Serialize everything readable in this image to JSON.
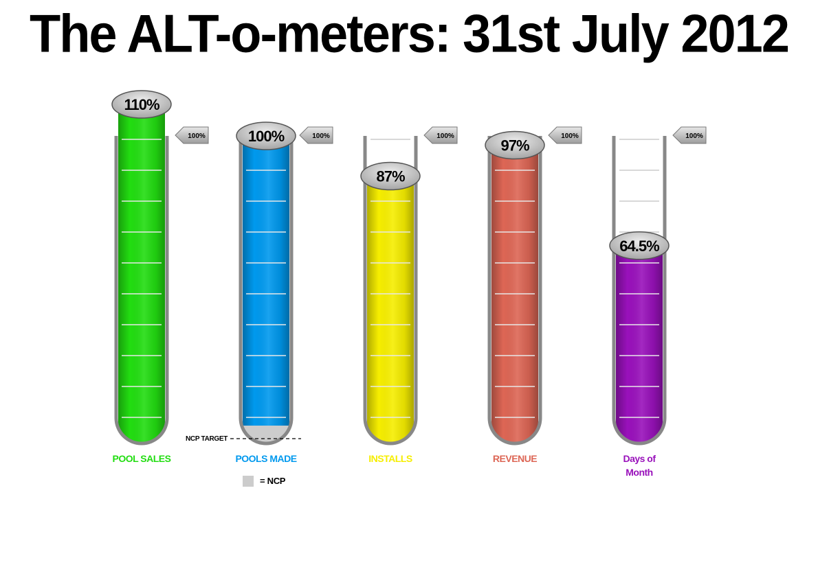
{
  "title": "The ALT-o-meters: 31st July 2012",
  "ncp_target_label": "NCP TARGET",
  "ncp_legend": "= NCP",
  "colors": {
    "pool_sales": "#22dd11",
    "pools_made": "#0099ee",
    "installs": "#f6ee00",
    "revenue": "#dd6655",
    "days_of_month": "#9911bb",
    "ncp": "#cccccc"
  },
  "chart_data": {
    "type": "bar",
    "categories": [
      "POOL SALES",
      "POOLS MADE",
      "INSTALLS",
      "REVENUE",
      "Days of Month"
    ],
    "values": [
      110,
      100,
      87,
      97,
      64.5
    ],
    "value_labels": [
      "110%",
      "100%",
      "87%",
      "97%",
      "64.5%"
    ],
    "target_labels": [
      "100%",
      "100%",
      "100%",
      "100%",
      "100%"
    ],
    "target": 100,
    "unit": "%",
    "ylim": [
      0,
      110
    ],
    "series_colors": [
      "#22dd11",
      "#0099ee",
      "#f6ee00",
      "#dd6655",
      "#9911bb"
    ],
    "label_colors": [
      "#22dd11",
      "#0099ee",
      "#f6ee00",
      "#dd6655",
      "#9911bb"
    ],
    "ncp_segment": {
      "category": "POOLS MADE",
      "label": "= NCP"
    }
  }
}
